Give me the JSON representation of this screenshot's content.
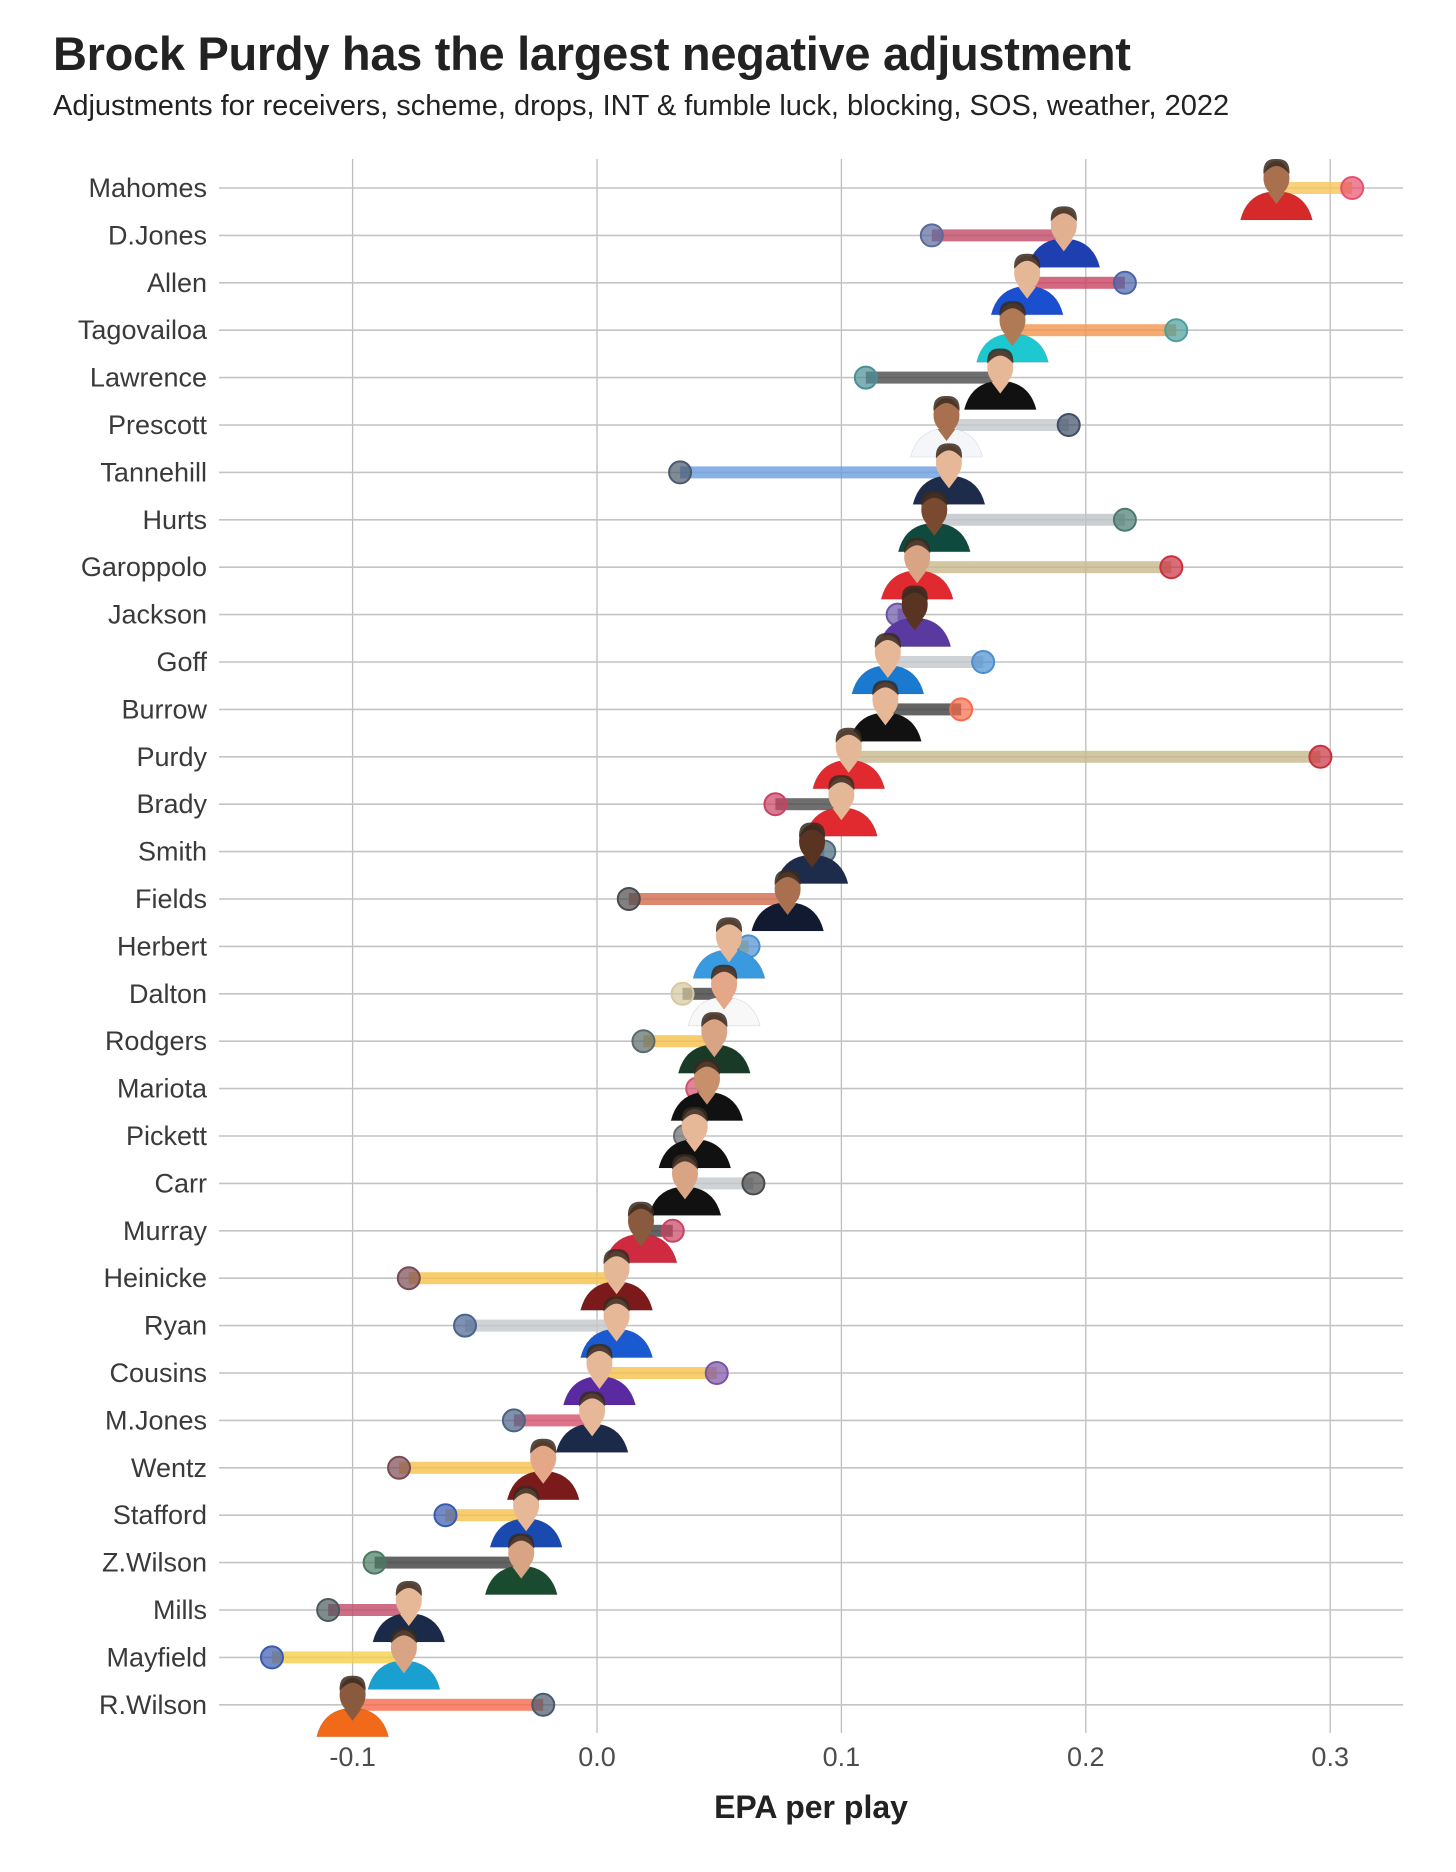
{
  "title": "Brock Purdy has the largest negative adjustment",
  "subtitle": "Adjustments for receivers, scheme, drops, INT & fumble luck, blocking, SOS, weather, 2022",
  "chart_data": {
    "type": "dumbbell",
    "title": "Brock Purdy has the largest negative adjustment",
    "subtitle": "Adjustments for receivers, scheme, drops, INT & fumble luck, blocking, SOS, weather, 2022",
    "xlabel": "EPA per play",
    "ylabel": "",
    "xlim": [
      -0.155,
      0.33
    ],
    "xticks": [
      -0.1,
      0.0,
      0.1,
      0.2,
      0.3
    ],
    "xtick_labels": [
      "-0.1",
      "0.0",
      "0.1",
      "0.2",
      "0.3"
    ],
    "grid": true,
    "legend": "none",
    "series_description": "Player headshot marks adjusted EPA per play; circle marks raw EPA per play; bar connects them",
    "players": [
      {
        "name": "Mahomes",
        "adjusted": 0.278,
        "raw": 0.309,
        "bar_color": "#f9c55a",
        "dot_color": "#e8506e",
        "jersey": "#d62a2a",
        "skin": "#a8704e"
      },
      {
        "name": "D.Jones",
        "adjusted": 0.191,
        "raw": 0.137,
        "bar_color": "#c24a68",
        "dot_color": "#5a6a9c",
        "jersey": "#1e3fb0",
        "skin": "#e0b090"
      },
      {
        "name": "Allen",
        "adjusted": 0.176,
        "raw": 0.216,
        "bar_color": "#c94262",
        "dot_color": "#4a64a8",
        "jersey": "#1a4fd0",
        "skin": "#e4b896"
      },
      {
        "name": "Tagovailoa",
        "adjusted": 0.17,
        "raw": 0.237,
        "bar_color": "#f2954e",
        "dot_color": "#4a9e9c",
        "jersey": "#1ec8d0",
        "skin": "#b07a56"
      },
      {
        "name": "Lawrence",
        "adjusted": 0.165,
        "raw": 0.11,
        "bar_color": "#4a4a4a",
        "dot_color": "#4a8f96",
        "jersey": "#111111",
        "skin": "#e6b898"
      },
      {
        "name": "Prescott",
        "adjusted": 0.143,
        "raw": 0.193,
        "bar_color": "#c4c8cc",
        "dot_color": "#3d4e66",
        "jersey": "#f4f6fa",
        "skin": "#a8704e"
      },
      {
        "name": "Tannehill",
        "adjusted": 0.144,
        "raw": 0.034,
        "bar_color": "#6a9ee0",
        "dot_color": "#4a5a6c",
        "jersey": "#1c2c4a",
        "skin": "#e6b898"
      },
      {
        "name": "Hurts",
        "adjusted": 0.138,
        "raw": 0.216,
        "bar_color": "#bfc3c5",
        "dot_color": "#4a7a72",
        "jersey": "#0f4a3e",
        "skin": "#7a4a30"
      },
      {
        "name": "Garoppolo",
        "adjusted": 0.131,
        "raw": 0.235,
        "bar_color": "#c8b88c",
        "dot_color": "#c9303e",
        "jersey": "#e02a30",
        "skin": "#d8a484"
      },
      {
        "name": "Jackson",
        "adjusted": 0.13,
        "raw": 0.123,
        "bar_color": "#7a5ab0",
        "dot_color": "#6a52a8",
        "jersey": "#5a3aa0",
        "skin": "#5a3422"
      },
      {
        "name": "Goff",
        "adjusted": 0.119,
        "raw": 0.158,
        "bar_color": "#c4c8cc",
        "dot_color": "#4a8ed0",
        "jersey": "#1a7ad0",
        "skin": "#e6b898"
      },
      {
        "name": "Burrow",
        "adjusted": 0.118,
        "raw": 0.149,
        "bar_color": "#3d3d3d",
        "dot_color": "#f56a4a",
        "jersey": "#111111",
        "skin": "#e6b898"
      },
      {
        "name": "Purdy",
        "adjusted": 0.103,
        "raw": 0.296,
        "bar_color": "#c8b88c",
        "dot_color": "#c9303e",
        "jersey": "#e02a30",
        "skin": "#e4b896"
      },
      {
        "name": "Brady",
        "adjusted": 0.1,
        "raw": 0.073,
        "bar_color": "#4a4a4a",
        "dot_color": "#c94262",
        "jersey": "#e02a30",
        "skin": "#e4b896"
      },
      {
        "name": "Smith",
        "adjusted": 0.088,
        "raw": 0.093,
        "bar_color": "#6a9ee0",
        "dot_color": "#4a6a7c",
        "jersey": "#1c2c4a",
        "skin": "#5a3422"
      },
      {
        "name": "Fields",
        "adjusted": 0.078,
        "raw": 0.013,
        "bar_color": "#d26a4e",
        "dot_color": "#4a4a4e",
        "jersey": "#111a30",
        "skin": "#a8704e"
      },
      {
        "name": "Herbert",
        "adjusted": 0.054,
        "raw": 0.062,
        "bar_color": "#f5c04a",
        "dot_color": "#4a8ed0",
        "jersey": "#3a9ae0",
        "skin": "#e6b898"
      },
      {
        "name": "Dalton",
        "adjusted": 0.052,
        "raw": 0.035,
        "bar_color": "#3d3d3d",
        "dot_color": "#d6c8a0",
        "jersey": "#f8f8f8",
        "skin": "#e4a888"
      },
      {
        "name": "Rodgers",
        "adjusted": 0.048,
        "raw": 0.019,
        "bar_color": "#f5c04a",
        "dot_color": "#5a6a6a",
        "jersey": "#1a3a28",
        "skin": "#d8a484"
      },
      {
        "name": "Mariota",
        "adjusted": 0.045,
        "raw": 0.041,
        "bar_color": "#3d3d3d",
        "dot_color": "#d6506e",
        "jersey": "#111111",
        "skin": "#c8906a"
      },
      {
        "name": "Pickett",
        "adjusted": 0.04,
        "raw": 0.036,
        "bar_color": "#f5c04a",
        "dot_color": "#6a6a6a",
        "jersey": "#111111",
        "skin": "#e6b898"
      },
      {
        "name": "Carr",
        "adjusted": 0.036,
        "raw": 0.064,
        "bar_color": "#c4c8cc",
        "dot_color": "#4a4a4a",
        "jersey": "#111111",
        "skin": "#d8a484"
      },
      {
        "name": "Murray",
        "adjusted": 0.018,
        "raw": 0.031,
        "bar_color": "#3d3d3d",
        "dot_color": "#c94262",
        "jersey": "#d02a40",
        "skin": "#8a5a3e"
      },
      {
        "name": "Heinicke",
        "adjusted": 0.008,
        "raw": -0.077,
        "bar_color": "#f5c04a",
        "dot_color": "#7a4a52",
        "jersey": "#7a1a1a",
        "skin": "#e4b896"
      },
      {
        "name": "Ryan",
        "adjusted": 0.008,
        "raw": -0.054,
        "bar_color": "#c4c8cc",
        "dot_color": "#4a6490",
        "jersey": "#1a5ad0",
        "skin": "#e6b898"
      },
      {
        "name": "Cousins",
        "adjusted": 0.001,
        "raw": 0.049,
        "bar_color": "#f5c04a",
        "dot_color": "#7a52a8",
        "jersey": "#5a2aa0",
        "skin": "#e6b898"
      },
      {
        "name": "M.Jones",
        "adjusted": -0.002,
        "raw": -0.034,
        "bar_color": "#d6506e",
        "dot_color": "#4a6484",
        "jersey": "#1c2a4a",
        "skin": "#e6b898"
      },
      {
        "name": "Wentz",
        "adjusted": -0.022,
        "raw": -0.081,
        "bar_color": "#f5c04a",
        "dot_color": "#7a4a52",
        "jersey": "#7a1a1a",
        "skin": "#e4a888"
      },
      {
        "name": "Stafford",
        "adjusted": -0.029,
        "raw": -0.062,
        "bar_color": "#f5c04a",
        "dot_color": "#3a5ab0",
        "jersey": "#1a4ab0",
        "skin": "#e6b898"
      },
      {
        "name": "Z.Wilson",
        "adjusted": -0.031,
        "raw": -0.091,
        "bar_color": "#3d3d3d",
        "dot_color": "#4a7a62",
        "jersey": "#1a4a30",
        "skin": "#d8a484"
      },
      {
        "name": "Mills",
        "adjusted": -0.077,
        "raw": -0.11,
        "bar_color": "#c24a68",
        "dot_color": "#4a5a5c",
        "jersey": "#1c2a4a",
        "skin": "#e6b898"
      },
      {
        "name": "Mayfield",
        "adjusted": -0.079,
        "raw": -0.133,
        "bar_color": "#f5d04a",
        "dot_color": "#3a5ab0",
        "jersey": "#1aa0d0",
        "skin": "#d8a484"
      },
      {
        "name": "R.Wilson",
        "adjusted": -0.1,
        "raw": -0.022,
        "bar_color": "#f56a4a",
        "dot_color": "#4a5a6c",
        "jersey": "#f06a1a",
        "skin": "#8a5a3e"
      }
    ]
  }
}
